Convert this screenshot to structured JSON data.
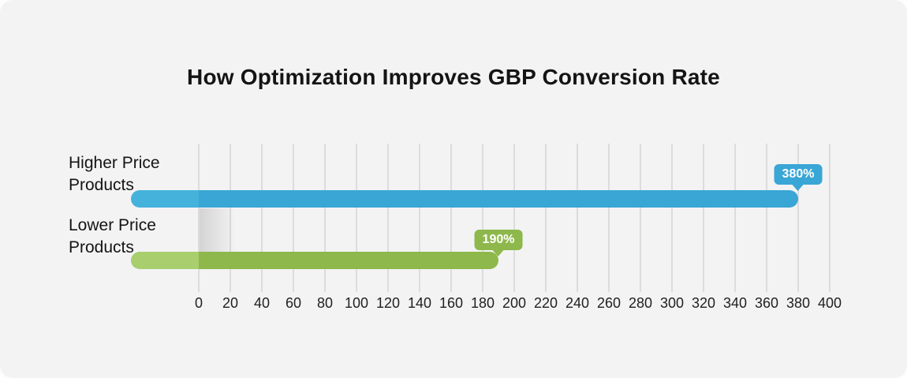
{
  "title": "How Optimization Improves GBP Conversion Rate",
  "colors": {
    "card_background": "#f3f3f4",
    "gridline": "#dcdcdc",
    "title_text": "#141414",
    "axis_text": "#1f1f1f",
    "tooltip_text": "#ffffff"
  },
  "chart_data": {
    "type": "bar",
    "orientation": "horizontal",
    "title": "How Optimization Improves GBP Conversion Rate",
    "categories": [
      "Higher Price Products",
      "Lower Price Products"
    ],
    "values": [
      380,
      190
    ],
    "value_labels": [
      "380%",
      "190%"
    ],
    "series_colors": [
      "#39a6d5",
      "#8eb84b"
    ],
    "series_colors_light": [
      "#45b2db",
      "#a8ce6e"
    ],
    "unit": "%",
    "xlabel": "",
    "ylabel": "",
    "xlim": [
      0,
      400
    ],
    "xticks": [
      0,
      20,
      40,
      60,
      80,
      100,
      120,
      140,
      160,
      180,
      200,
      220,
      240,
      260,
      280,
      300,
      320,
      340,
      360,
      380,
      400
    ],
    "grid": true,
    "legend": false
  }
}
